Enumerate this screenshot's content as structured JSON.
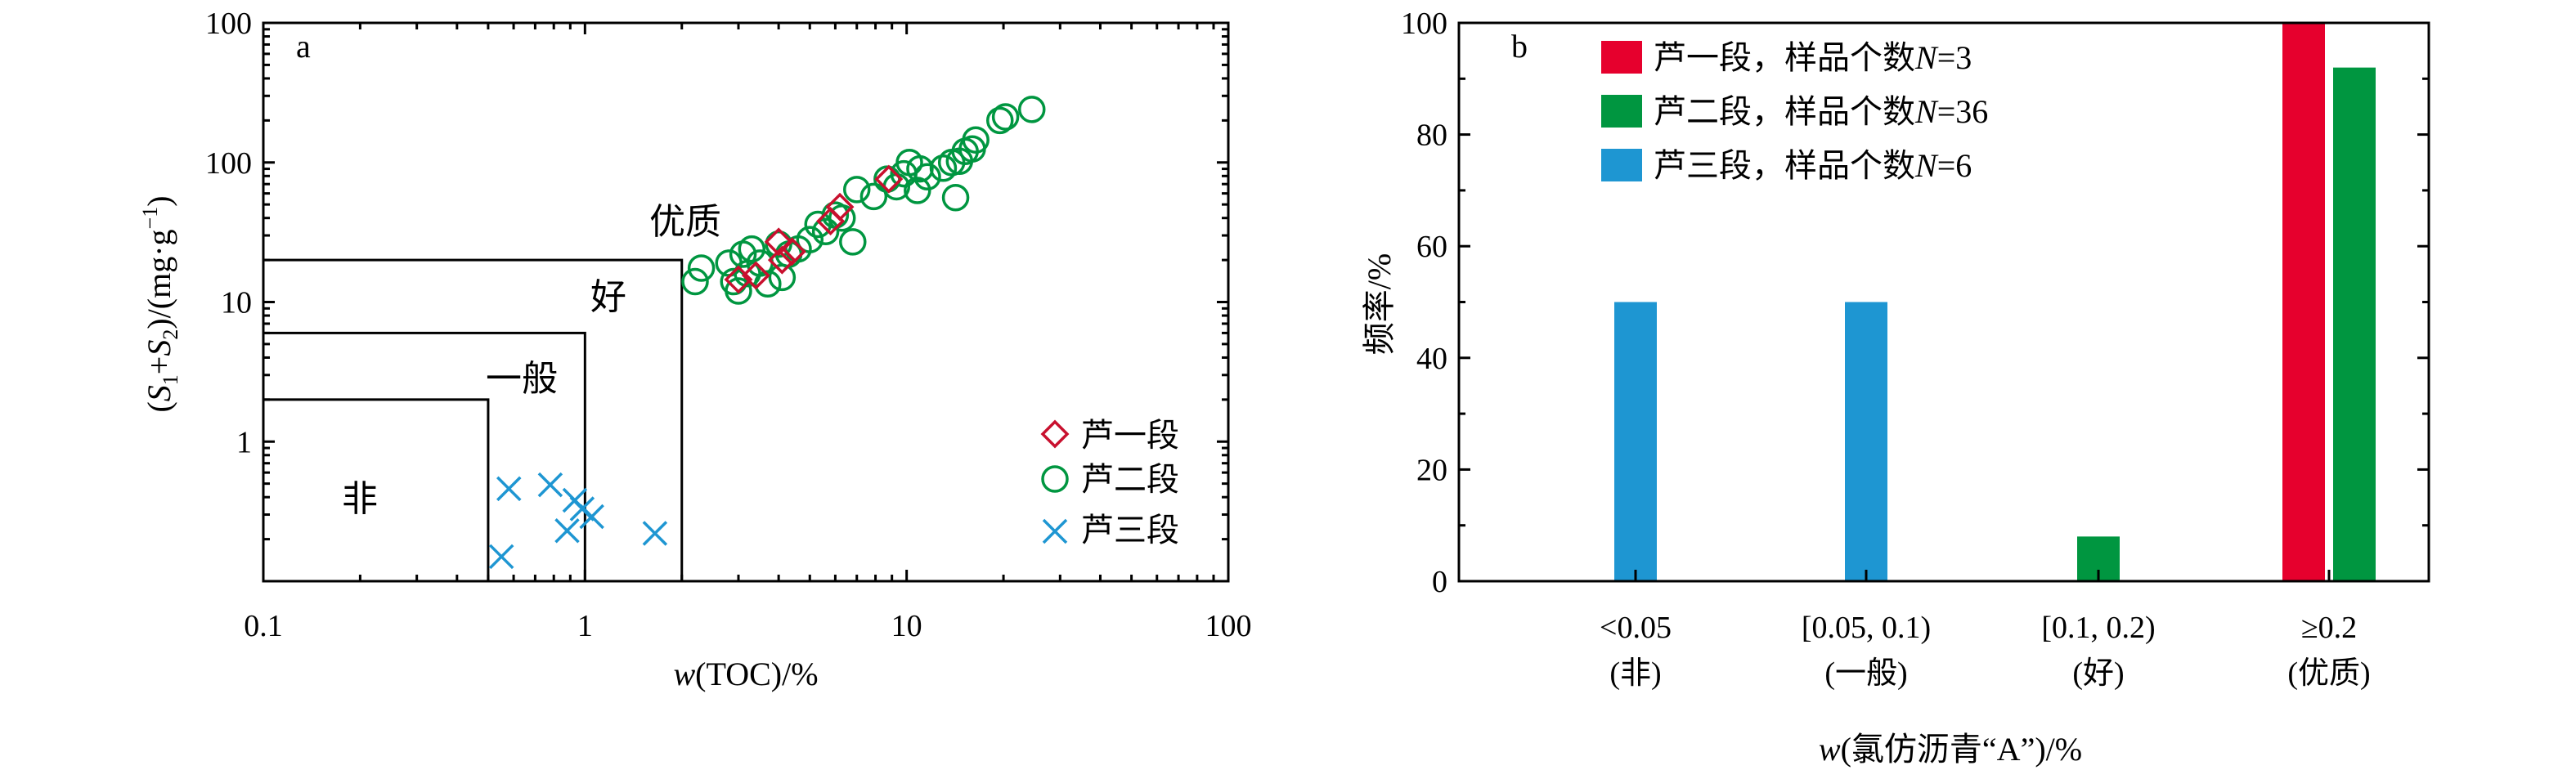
{
  "chart_data": [
    {
      "type": "scatter",
      "panel_label": "a",
      "xlabel": "w(TOC)/%",
      "ylabel": "(S1+S2)/(mg·g⁻¹)",
      "xscale": "log",
      "yscale": "log",
      "xlim": [
        0.1,
        100
      ],
      "ylim": [
        0.1,
        1000
      ],
      "x_ticks": [
        "0.1",
        "1",
        "10",
        "100"
      ],
      "y_ticks": [
        "1",
        "10",
        "100",
        "100"
      ],
      "grid": false,
      "legend_position": "bottom-right",
      "zones": [
        {
          "label": "非",
          "x_max": 0.5,
          "y_max": 2
        },
        {
          "label": "一般",
          "x_max": 1,
          "y_max": 6
        },
        {
          "label": "好",
          "x_max": 2,
          "y_max": 20
        },
        {
          "label": "优质"
        }
      ],
      "series": [
        {
          "name": "芦一段",
          "marker": "diamond",
          "color": "#c8102e",
          "points": [
            [
              3.0,
              14.5
            ],
            [
              3.4,
              15.5
            ],
            [
              4.1,
              20
            ],
            [
              4.4,
              23
            ],
            [
              4.0,
              27
            ],
            [
              5.8,
              38
            ],
            [
              6.2,
              48
            ],
            [
              8.8,
              76
            ]
          ]
        },
        {
          "name": "芦二段",
          "marker": "circle",
          "color": "#009640",
          "points": [
            [
              2.2,
              14
            ],
            [
              2.3,
              17.5
            ],
            [
              2.8,
              19
            ],
            [
              2.9,
              14
            ],
            [
              3.0,
              12
            ],
            [
              3.1,
              22
            ],
            [
              3.2,
              16
            ],
            [
              3.3,
              24
            ],
            [
              3.5,
              19
            ],
            [
              3.7,
              13.5
            ],
            [
              4.0,
              26
            ],
            [
              4.1,
              15
            ],
            [
              4.3,
              22
            ],
            [
              4.6,
              24
            ],
            [
              5.0,
              28
            ],
            [
              5.3,
              36
            ],
            [
              5.6,
              32
            ],
            [
              6.0,
              42
            ],
            [
              6.3,
              40
            ],
            [
              6.8,
              27
            ],
            [
              7.0,
              64
            ],
            [
              7.9,
              57
            ],
            [
              8.7,
              76
            ],
            [
              9.3,
              67
            ],
            [
              9.8,
              83
            ],
            [
              10.2,
              100
            ],
            [
              10.8,
              63
            ],
            [
              11.0,
              90
            ],
            [
              11.6,
              79
            ],
            [
              13.0,
              91
            ],
            [
              13.8,
              100
            ],
            [
              14.2,
              56
            ],
            [
              14.6,
              102
            ],
            [
              15.2,
              120
            ],
            [
              16.4,
              145
            ],
            [
              16.0,
              125
            ],
            [
              19.5,
              200
            ],
            [
              20.3,
              212
            ],
            [
              24.5,
              240
            ]
          ]
        },
        {
          "name": "芦三段",
          "marker": "x",
          "color": "#1e96d2",
          "points": [
            [
              0.55,
              0.15
            ],
            [
              0.58,
              0.46
            ],
            [
              0.78,
              0.49
            ],
            [
              0.88,
              0.23
            ],
            [
              0.93,
              0.38
            ],
            [
              0.98,
              0.33
            ],
            [
              1.05,
              0.29
            ],
            [
              1.65,
              0.22
            ]
          ]
        }
      ]
    },
    {
      "type": "bar",
      "panel_label": "b",
      "xlabel": "w(氯仿沥青“A”)/%",
      "ylabel": "频率/%",
      "ylim": [
        0,
        100
      ],
      "y_ticks": [
        "0",
        "20",
        "40",
        "60",
        "80",
        "100"
      ],
      "grid": false,
      "legend_position": "top-left",
      "categories": [
        {
          "range": "<0.05",
          "grade": "(非)"
        },
        {
          "range": "[0.05, 0.1)",
          "grade": "(一般)"
        },
        {
          "range": "[0.1, 0.2)",
          "grade": "(好)"
        },
        {
          "range": "≥0.2",
          "grade": "(优质)"
        }
      ],
      "series": [
        {
          "name_prefix": "芦一段，样品个数",
          "n_symbol": "N",
          "n_value": "=3",
          "color": "#e6002d",
          "values": [
            0,
            0,
            0,
            100
          ]
        },
        {
          "name_prefix": "芦二段，样品个数",
          "n_symbol": "N",
          "n_value": "=36",
          "color": "#009640",
          "values": [
            0,
            0,
            8,
            92
          ]
        },
        {
          "name_prefix": "芦三段，样品个数",
          "n_symbol": "N",
          "n_value": "=6",
          "color": "#1e96d2",
          "values": [
            50,
            50,
            0,
            0
          ]
        }
      ]
    }
  ]
}
